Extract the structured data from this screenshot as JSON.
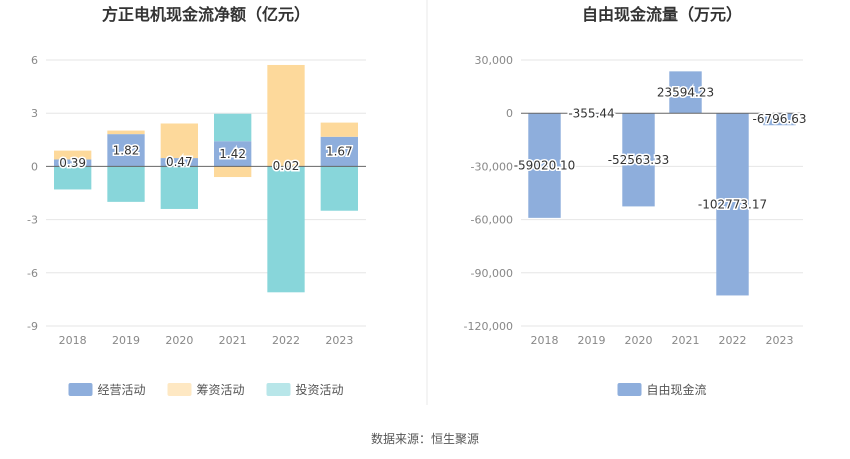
{
  "source_text": "数据来源：恒生聚源",
  "chart_data": [
    {
      "type": "bar",
      "stacked": true,
      "title": "方正电机现金流净额（亿元）",
      "categories": [
        "2018",
        "2019",
        "2020",
        "2021",
        "2022",
        "2023"
      ],
      "ylim": [
        -9,
        6
      ],
      "yticks": [
        "6",
        "3",
        "0",
        "-3",
        "-6",
        "-9"
      ],
      "ytick_values": [
        6,
        3,
        0,
        -3,
        -6,
        -9
      ],
      "grid": true,
      "legend": "bottom",
      "series": [
        {
          "name": "经营活动",
          "color": "#8eaedc",
          "values": [
            0.39,
            1.82,
            0.47,
            1.42,
            0.02,
            1.67
          ],
          "labels": [
            "0.39",
            "1.82",
            "0.47",
            "1.42",
            "0.02",
            "1.67"
          ]
        },
        {
          "name": "筹资活动",
          "color": "#fdd99b",
          "values": [
            0.5,
            0.2,
            1.95,
            -0.6,
            5.7,
            0.8
          ]
        },
        {
          "name": "投资活动",
          "color": "#88d6da",
          "values": [
            -1.3,
            -2.0,
            -2.4,
            1.55,
            -7.1,
            -2.5
          ]
        }
      ]
    },
    {
      "type": "bar",
      "title": "自由现金流量（万元）",
      "categories": [
        "2018",
        "2019",
        "2020",
        "2021",
        "2022",
        "2023"
      ],
      "ylim": [
        -120000,
        30000
      ],
      "yticks": [
        "30,000",
        "0",
        "-30,000",
        "-60,000",
        "-90,000",
        "-120,000"
      ],
      "ytick_values": [
        30000,
        0,
        -30000,
        -60000,
        -90000,
        -120000
      ],
      "grid": true,
      "legend": "bottom",
      "series": [
        {
          "name": "自由现金流",
          "color": "#8eaedc",
          "values": [
            -59020.1,
            -355.44,
            -52563.33,
            23594.23,
            -102773.17,
            -6796.63
          ],
          "labels": [
            "-59020.10",
            "-355.44",
            "-52563.33",
            "23594.23",
            "-102773.17",
            "-6796.63"
          ]
        }
      ]
    }
  ]
}
